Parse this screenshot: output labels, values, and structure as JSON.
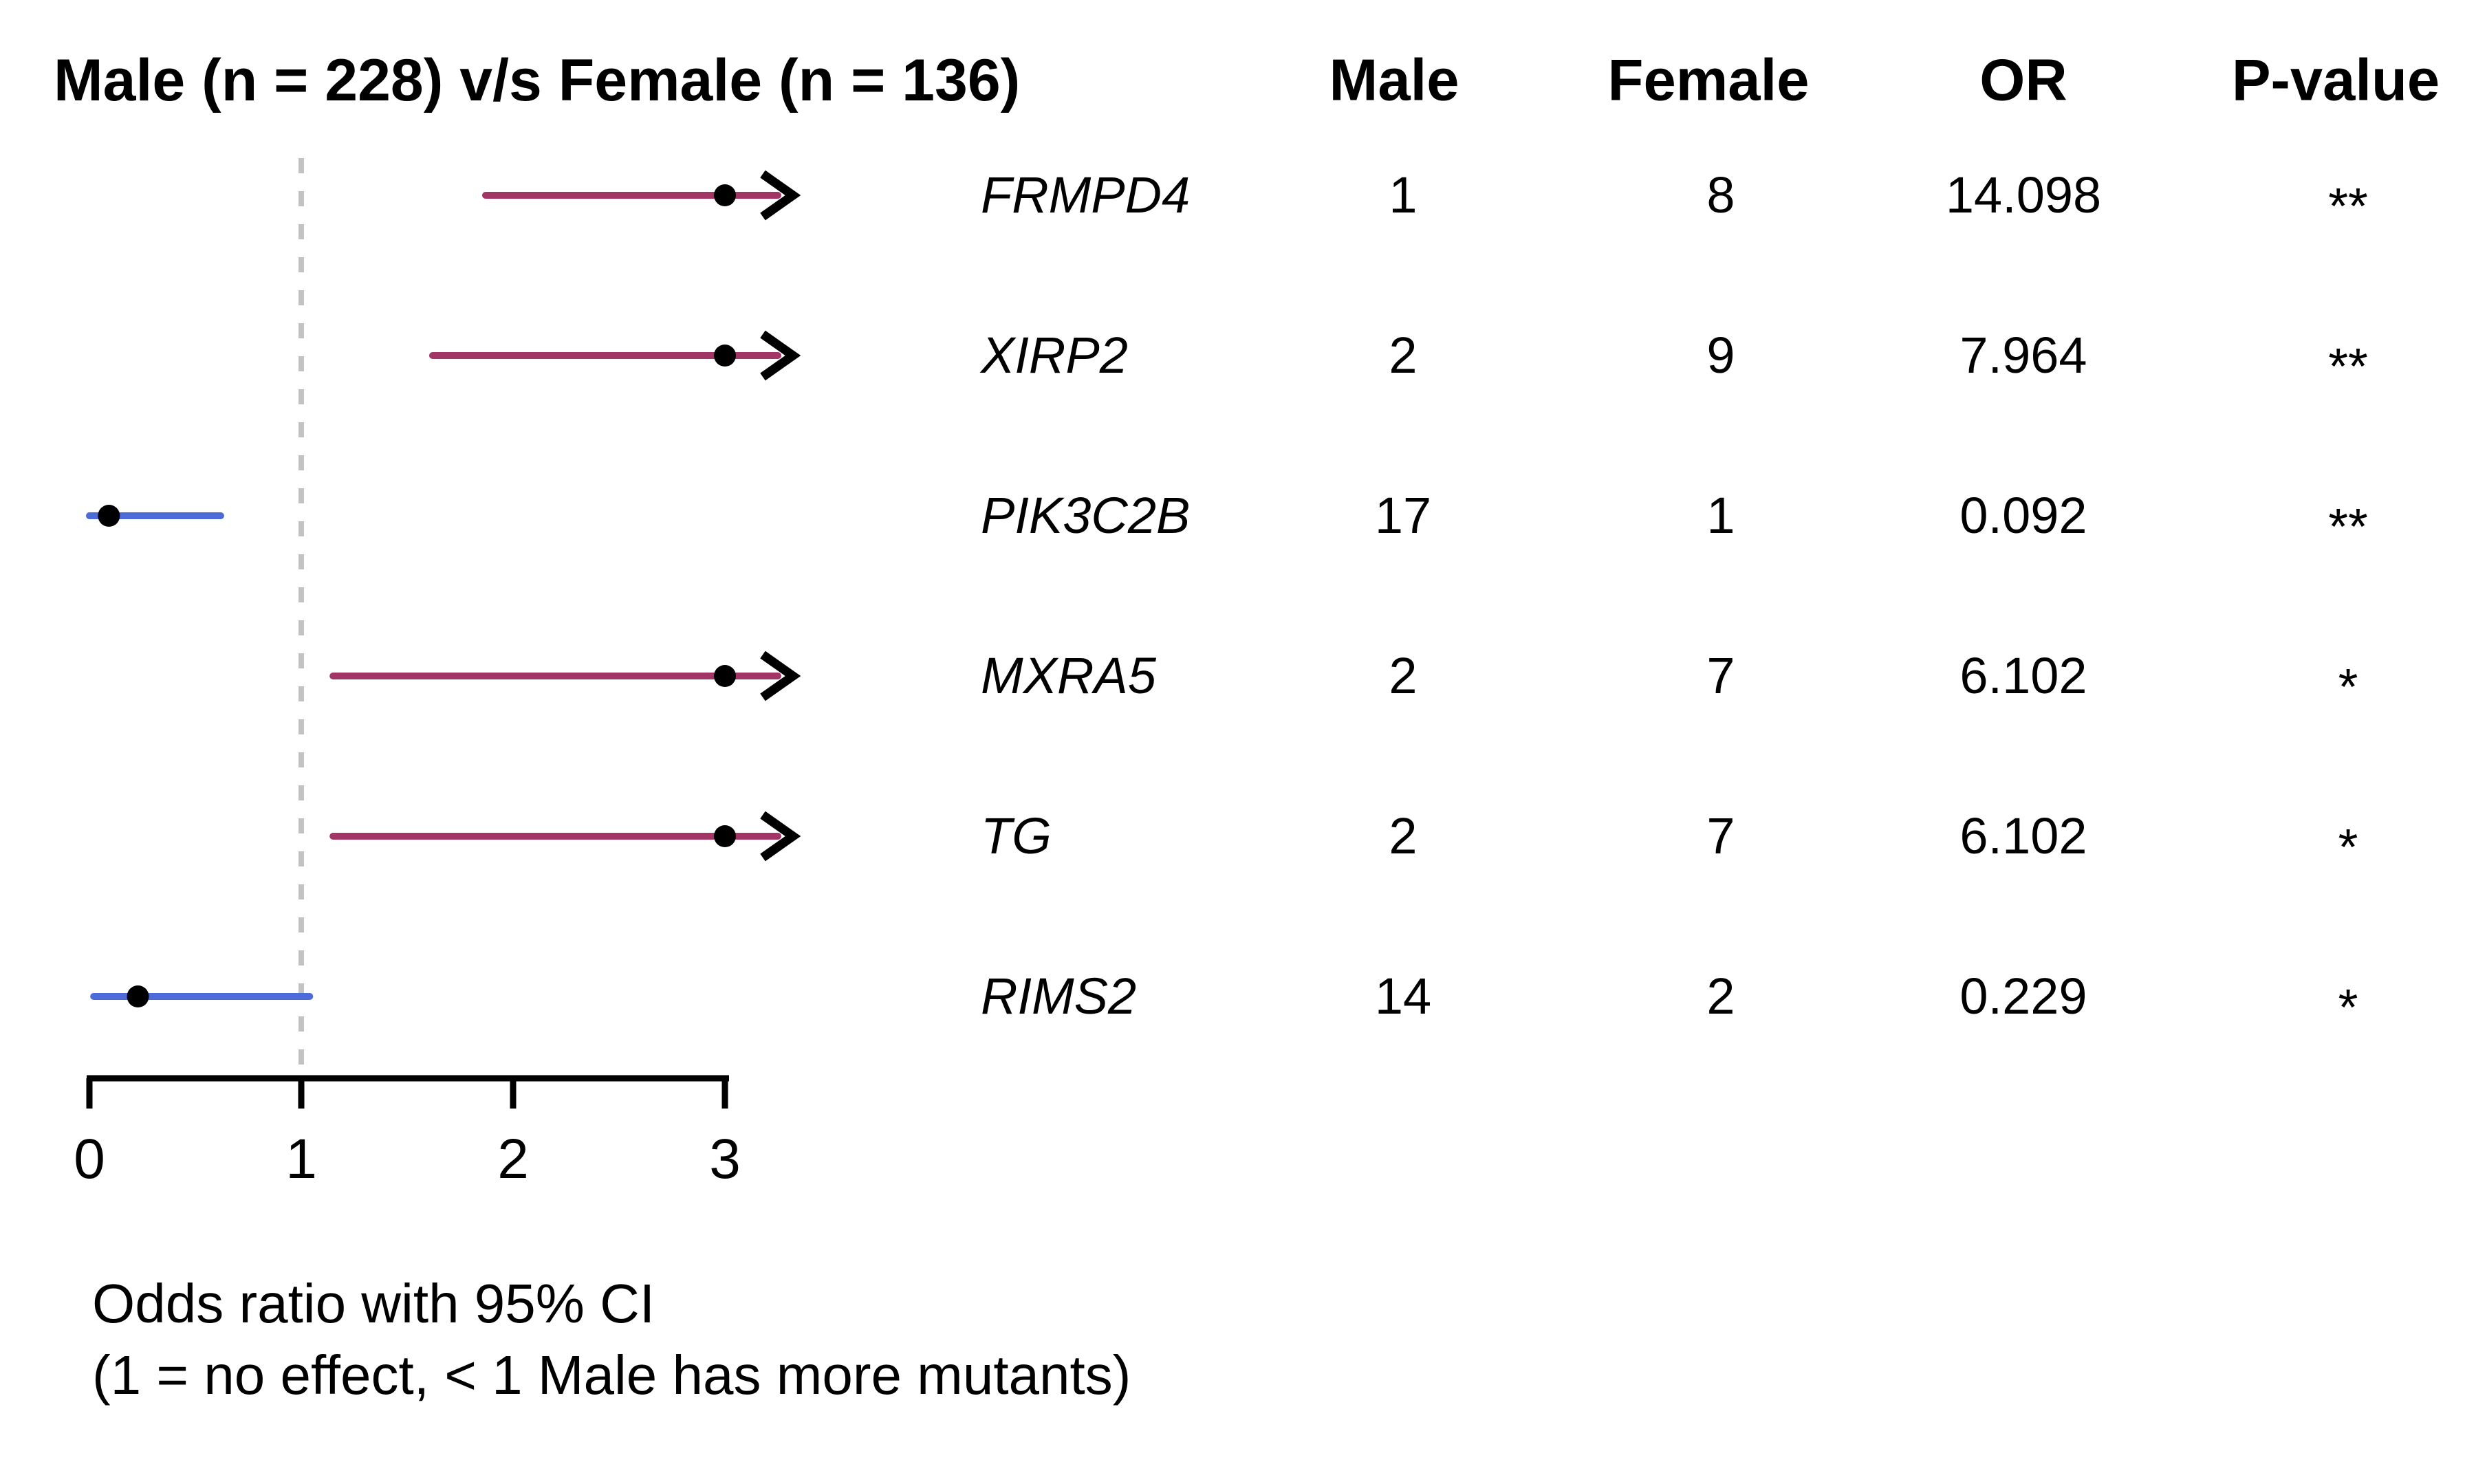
{
  "figure": {
    "title": "Male (n = 228) v/s Female (n = 136)",
    "caption_line1": "Odds ratio with 95% CI",
    "caption_line2": "(1 = no effect, < 1 Male has more mutants)"
  },
  "table": {
    "headers": {
      "male": "Male",
      "female": "Female",
      "or": "OR",
      "pvalue": "P-value"
    },
    "rows": [
      {
        "gene": "FRMPD4",
        "male": "1",
        "female": "8",
        "or": "14.098",
        "pvalue": "**"
      },
      {
        "gene": "XIRP2",
        "male": "2",
        "female": "9",
        "or": "7.964",
        "pvalue": "**"
      },
      {
        "gene": "PIK3C2B",
        "male": "17",
        "female": "1",
        "or": "0.092",
        "pvalue": "**"
      },
      {
        "gene": "MXRA5",
        "male": "2",
        "female": "7",
        "or": "6.102",
        "pvalue": "*"
      },
      {
        "gene": "TG",
        "male": "2",
        "female": "7",
        "or": "6.102",
        "pvalue": "*"
      },
      {
        "gene": "RIMS2",
        "male": "14",
        "female": "2",
        "or": "0.229",
        "pvalue": "*"
      }
    ]
  },
  "chart_data": {
    "type": "forest",
    "title": "Male (n = 228) v/s Female (n = 136)",
    "xlabel": "Odds ratio with 95% CI",
    "x_ticks": [
      0,
      1,
      2,
      3
    ],
    "xlim": [
      0,
      3.35
    ],
    "reference_line_x": 1,
    "grid": false,
    "series": [
      {
        "gene": "FRMPD4",
        "or": 14.098,
        "male_mutants": 1,
        "female_mutants": 8,
        "significance": "**",
        "plotted_at": 3.0,
        "ci_low_drawn": 1.87,
        "ci_high_drawn": 3.25,
        "clipped_arrow": true,
        "color_key": "or_gt_1"
      },
      {
        "gene": "XIRP2",
        "or": 7.964,
        "male_mutants": 2,
        "female_mutants": 9,
        "significance": "**",
        "plotted_at": 3.0,
        "ci_low_drawn": 1.62,
        "ci_high_drawn": 3.25,
        "clipped_arrow": true,
        "color_key": "or_gt_1"
      },
      {
        "gene": "PIK3C2B",
        "or": 0.092,
        "male_mutants": 17,
        "female_mutants": 1,
        "significance": "**",
        "plotted_at": 0.092,
        "ci_low_drawn": 0.0,
        "ci_high_drawn": 0.62,
        "clipped_arrow": false,
        "color_key": "or_lt_1"
      },
      {
        "gene": "MXRA5",
        "or": 6.102,
        "male_mutants": 2,
        "female_mutants": 7,
        "significance": "*",
        "plotted_at": 3.0,
        "ci_low_drawn": 1.15,
        "ci_high_drawn": 3.25,
        "clipped_arrow": true,
        "color_key": "or_gt_1"
      },
      {
        "gene": "TG",
        "or": 6.102,
        "male_mutants": 2,
        "female_mutants": 7,
        "significance": "*",
        "plotted_at": 3.0,
        "ci_low_drawn": 1.15,
        "ci_high_drawn": 3.25,
        "clipped_arrow": true,
        "color_key": "or_gt_1"
      },
      {
        "gene": "RIMS2",
        "or": 0.229,
        "male_mutants": 14,
        "female_mutants": 2,
        "significance": "*",
        "plotted_at": 0.229,
        "ci_low_drawn": 0.02,
        "ci_high_drawn": 1.04,
        "clipped_arrow": false,
        "color_key": "or_lt_1"
      }
    ],
    "colors": {
      "or_gt_1": "#A23566",
      "or_lt_1": "#4C6AD8",
      "reference_line": "#C3C3C3",
      "marker": "#000000",
      "axis": "#000000"
    }
  }
}
